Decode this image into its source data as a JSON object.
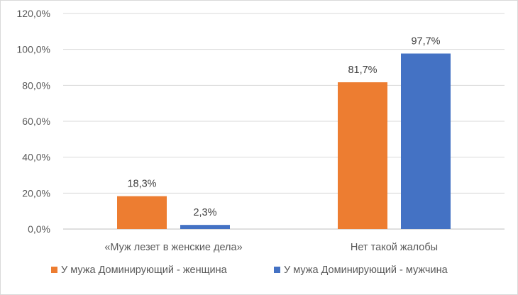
{
  "chart_data": {
    "type": "bar",
    "categories": [
      "«Муж лезет в женские дела»",
      "Нет такой жалобы"
    ],
    "series": [
      {
        "name": "У мужа Доминирующий - женщина",
        "values": [
          18.3,
          81.7
        ],
        "labels": [
          "18,3%",
          "81,7%"
        ],
        "color": "#ED7D31"
      },
      {
        "name": "У мужа Доминирующий - мужчина",
        "values": [
          2.3,
          97.7
        ],
        "labels": [
          "2,3%",
          "97,7%"
        ],
        "color": "#4472C4"
      }
    ],
    "y_ticks": [
      "0,0%",
      "20,0%",
      "40,0%",
      "60,0%",
      "80,0%",
      "100,0%",
      "120,0%"
    ],
    "ylim": [
      0,
      120
    ],
    "y_step": 20,
    "grid": true,
    "legend_position": "bottom"
  }
}
